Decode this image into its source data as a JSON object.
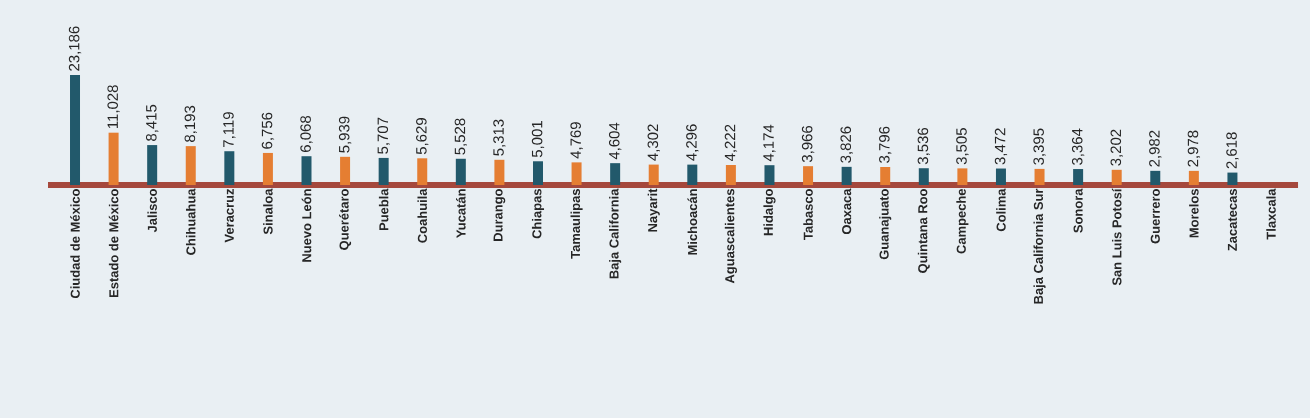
{
  "chart_data": {
    "type": "bar",
    "categories": [
      "Ciudad de México",
      "Estado de México",
      "Jalisco",
      "Chihuahua",
      "Veracruz",
      "Sinaloa",
      "Nuevo León",
      "Querétaro",
      "Puebla",
      "Coahuila",
      "Yucatán",
      "Durango",
      "Chiapas",
      "Tamaulipas",
      "Baja California",
      "Nayarit",
      "Michoacán",
      "Aguascalientes",
      "Hidalgo",
      "Tabasco",
      "Oaxaca",
      "Guanajuato",
      "Quintana Roo",
      "Campeche",
      "Colima",
      "Baja California Sur",
      "Sonora",
      "San Luis Potosí",
      "Guerrero",
      "Morelos",
      "Zacatecas",
      "Tlaxcala"
    ],
    "values": [
      23186,
      11028,
      8415,
      8193,
      7119,
      6756,
      6068,
      5939,
      5707,
      5629,
      5528,
      5313,
      5001,
      4769,
      4604,
      4302,
      4296,
      4222,
      4174,
      3966,
      3826,
      3796,
      3536,
      3505,
      3472,
      3395,
      3364,
      3202,
      2982,
      2978,
      2618,
      null
    ],
    "value_labels": [
      "23,186",
      "11,028",
      "8,415",
      "8,193",
      "7,119",
      "6,756",
      "6,068",
      "5,939",
      "5,707",
      "5,629",
      "5,528",
      "5,313",
      "5,001",
      "4,769",
      "4,604",
      "4,302",
      "4,296",
      "4,222",
      "4,174",
      "3,966",
      "3,826",
      "3,796",
      "3,536",
      "3,505",
      "3,472",
      "3,395",
      "3,364",
      "3,202",
      "2,982",
      "2,978",
      "2,618",
      null
    ],
    "colors": [
      "#22596b",
      "#e57e32",
      "#22596b",
      "#e57e32",
      "#22596b",
      "#e57e32",
      "#22596b",
      "#e57e32",
      "#22596b",
      "#e57e32",
      "#22596b",
      "#e57e32",
      "#22596b",
      "#e57e32",
      "#22596b",
      "#e57e32",
      "#22596b",
      "#e57e32",
      "#22596b",
      "#e57e32",
      "#22596b",
      "#e57e32",
      "#22596b",
      "#e57e32",
      "#22596b",
      "#e57e32",
      "#22596b",
      "#e57e32",
      "#22596b",
      "#e57e32",
      "#22596b",
      "#e57e32"
    ]
  }
}
